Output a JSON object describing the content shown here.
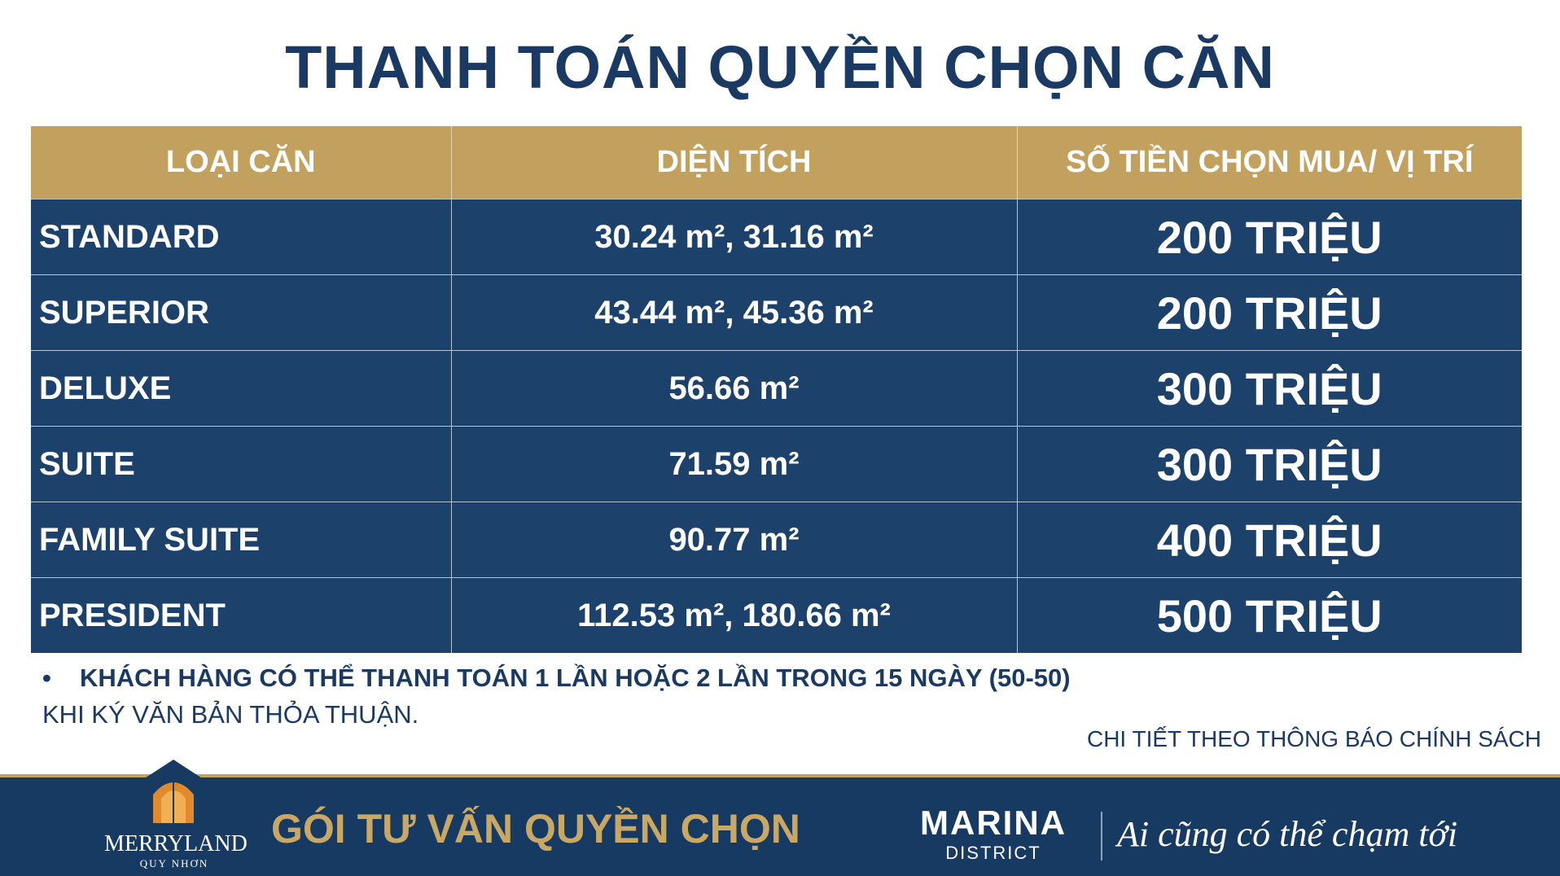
{
  "title": "THANH TOÁN QUYỀN CHỌN CĂN",
  "table": {
    "header": [
      "LOẠI CĂN",
      "DIỆN TÍCH",
      "SỐ TIỀN CHỌN MUA/ VỊ TRÍ"
    ],
    "rows": [
      [
        "STANDARD",
        "30.24 m², 31.16 m²",
        "200 TRIỆU"
      ],
      [
        "SUPERIOR",
        "43.44 m², 45.36 m²",
        "200 TRIỆU"
      ],
      [
        "DELUXE",
        "56.66 m²",
        "300 TRIỆU"
      ],
      [
        "SUITE",
        "71.59 m²",
        "300 TRIỆU"
      ],
      [
        "FAMILY SUITE",
        "90.77 m²",
        "400 TRIỆU"
      ],
      [
        "PRESIDENT",
        "112.53 m², 180.66 m²",
        "500 TRIỆU"
      ]
    ]
  },
  "notes": {
    "bullet": "KHÁCH HÀNG CÓ THỂ THANH TOÁN 1 LẦN HOẶC 2 LẦN TRONG 15 NGÀY (50-50)",
    "continuation": "KHI KÝ VĂN BẢN THỎA THUẬN."
  },
  "detail": "CHI TIẾT THEO THÔNG BÁO CHÍNH SÁCH",
  "footer": {
    "brand": "MERRYLAND",
    "brand_sub": "QUY NHƠN",
    "slogan": "GÓI TƯ VẤN QUYỀN CHỌN",
    "district": "MARINA",
    "district_sub": "DISTRICT",
    "tagline": "Ai cũng có thể chạm tới"
  }
}
